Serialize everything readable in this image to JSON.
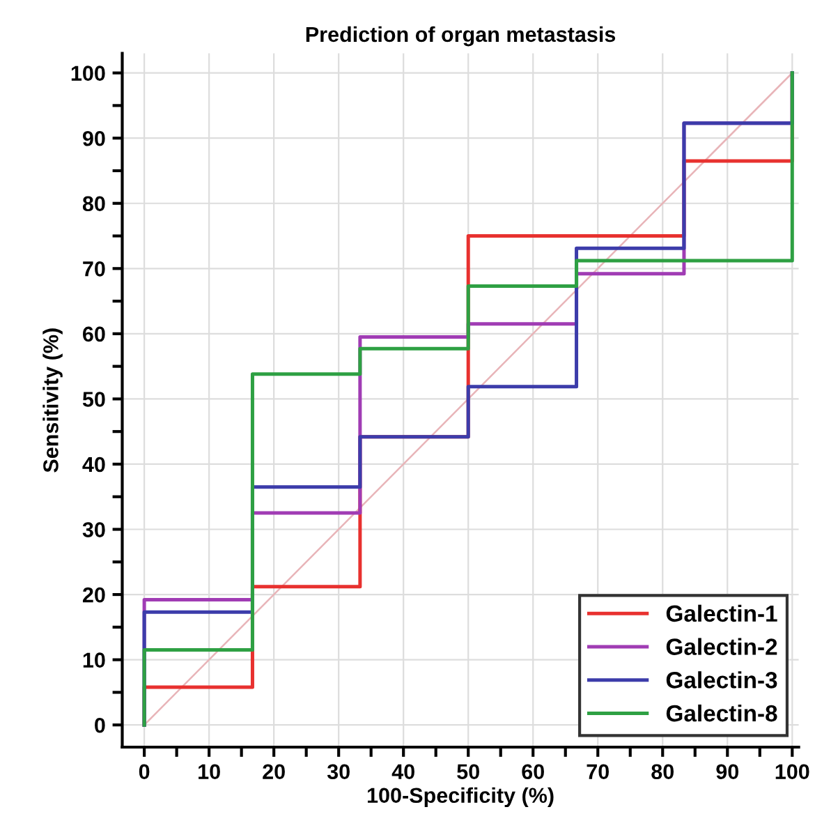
{
  "chart_data": {
    "type": "line",
    "title": "Prediction of organ metastasis",
    "xlabel": "100-Specificity (%)",
    "ylabel": "Sensitivity (%)",
    "series": [
      {
        "type": "line",
        "color": "#e8b4b8",
        "x": [
          0,
          100
        ],
        "values": [
          0,
          100
        ]
      },
      {
        "name": "Galectin-1",
        "color": "#e8312f",
        "x": [
          0,
          0,
          16.7,
          16.7,
          33.3,
          33.3,
          50,
          50,
          83.3,
          83.3,
          100,
          100
        ],
        "values": [
          0,
          5.8,
          5.8,
          21.2,
          21.2,
          44.2,
          44.2,
          75,
          75,
          86.5,
          86.5,
          100
        ]
      },
      {
        "name": "Galectin-2",
        "color": "#a03cb4",
        "x": [
          0,
          0,
          16.7,
          16.7,
          33.3,
          33.3,
          50,
          50,
          66.7,
          66.7,
          83.3,
          83.3,
          100,
          100
        ],
        "values": [
          0,
          19.2,
          19.2,
          32.5,
          32.5,
          59.5,
          59.5,
          61.5,
          61.5,
          69.2,
          69.2,
          92.3,
          92.3,
          100
        ]
      },
      {
        "name": "Galectin-3",
        "color": "#3c3caa",
        "x": [
          0,
          0,
          16.7,
          16.7,
          33.3,
          33.3,
          50,
          50,
          66.7,
          66.7,
          83.3,
          83.3,
          100,
          100
        ],
        "values": [
          0,
          17.3,
          17.3,
          36.5,
          36.5,
          44.2,
          44.2,
          51.9,
          51.9,
          73.1,
          73.1,
          92.3,
          92.3,
          100
        ]
      },
      {
        "name": "Galectin-8",
        "color": "#2ea043",
        "x": [
          0,
          0,
          16.7,
          16.7,
          33.3,
          33.3,
          50,
          50,
          66.7,
          66.7,
          100,
          100
        ],
        "values": [
          0,
          11.5,
          11.5,
          53.8,
          53.8,
          57.7,
          57.7,
          67.3,
          67.3,
          71.2,
          71.2,
          100
        ]
      }
    ],
    "xlim": [
      -3.4,
      101
    ],
    "ylim": [
      -3.4,
      103
    ],
    "xticks": [
      0,
      {
        "value": 5,
        "label": null
      },
      10,
      {
        "value": 15,
        "label": null
      },
      20,
      {
        "value": 25,
        "label": null
      },
      30,
      {
        "value": 35,
        "label": null
      },
      40,
      {
        "value": 45,
        "label": null
      },
      50,
      {
        "value": 55,
        "label": null
      },
      60,
      {
        "value": 65,
        "label": null
      },
      70,
      {
        "value": 75,
        "label": null
      },
      80,
      {
        "value": 85,
        "label": null
      },
      90,
      {
        "value": 95,
        "label": null
      },
      100
    ],
    "yticks": [
      0,
      {
        "value": 5,
        "label": null
      },
      10,
      {
        "value": 15,
        "label": null
      },
      20,
      {
        "value": 25,
        "label": null
      },
      30,
      {
        "value": 35,
        "label": null
      },
      40,
      {
        "value": 45,
        "label": null
      },
      50,
      {
        "value": 55,
        "label": null
      },
      60,
      {
        "value": 65,
        "label": null
      },
      70,
      {
        "value": 75,
        "label": null
      },
      80,
      {
        "value": 85,
        "label": null
      },
      90,
      {
        "value": 95,
        "label": null
      },
      100
    ],
    "grid": true,
    "legend": "bottom right",
    "line_style": "solid",
    "marker": "none"
  }
}
